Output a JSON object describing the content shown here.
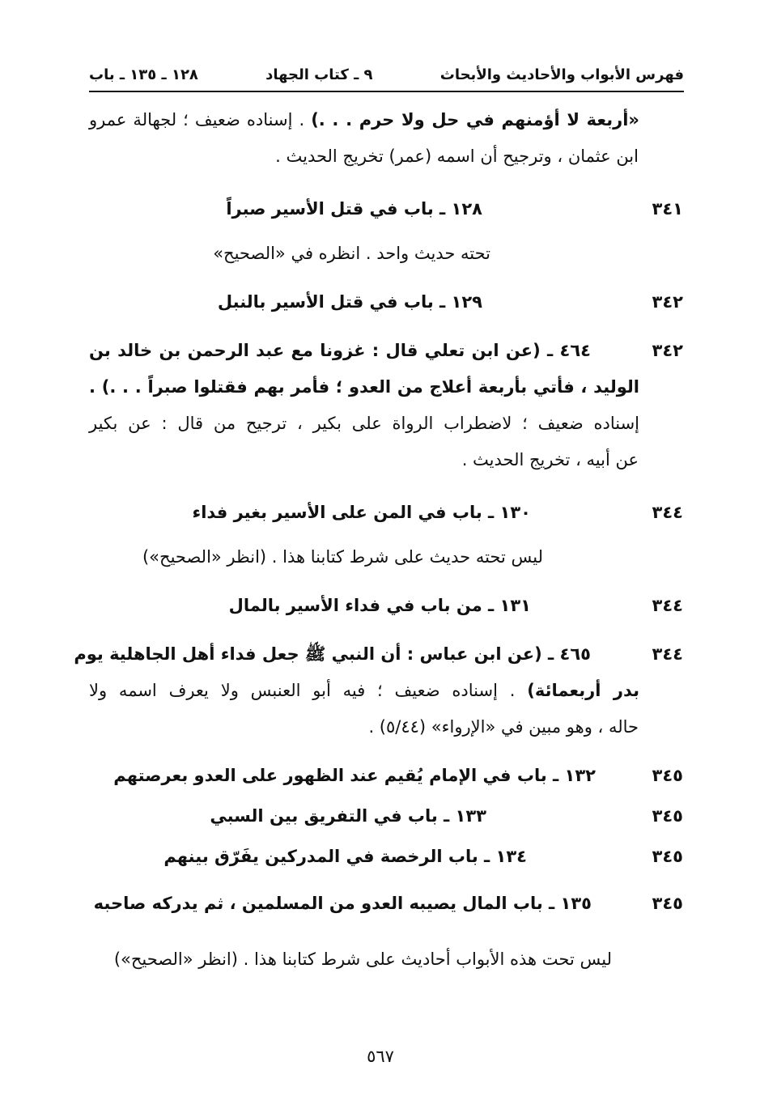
{
  "header": {
    "index_title": "فهرس الأبواب والأحاديث والأبحاث",
    "book": "٩ ـ كتاب الجهاد",
    "range": "١٢٨ ـ ١٣٥ ـ باب"
  },
  "entries": {
    "cont": {
      "l1_bold": "«أربعة لا أؤمنهم في حل ولا حرم . . .)",
      "l1_rest": " . إسناده ضعيف ؛ لجهالة عمرو",
      "l2": "ابن عثمان ، وترجيح أن اسمه (عمر) تخريج الحديث ."
    },
    "bab128": {
      "page": "٣٤١",
      "title": "١٢٨ ـ باب في قتل الأسير صبراً",
      "note": "تحته حديث واحد . انظره في «الصحيح»"
    },
    "bab129": {
      "page": "٣٤٢",
      "title": "١٢٩ ـ باب في قتل الأسير بالنبل"
    },
    "hadith464": {
      "page": "٣٤٢",
      "l1": "٤٦٤ ـ (عن ابن تعلي قال : غزونا مع عبد الرحمن بن خالد بن",
      "l2": "الوليد ، فأتي بأربعة أعلاج من العدو ؛ فأمر بهم فقتلوا صبراً . . .) .",
      "l3": "إسناده ضعيف ؛ لاضطراب الرواة على بكير ، ترجيح من قال : عن بكير",
      "l4": "عن أبيه ، تخريج الحديث ."
    },
    "bab130": {
      "page": "٣٤٤",
      "title": "١٣٠ ـ باب في المن على الأسير بغير فداء",
      "note": "ليس تحته حديث على شرط كتابنا هذا . (انظر «الصحيح»)"
    },
    "bab131": {
      "page": "٣٤٤",
      "title": "١٣١ ـ من باب في فداء الأسير بالمال"
    },
    "hadith465": {
      "page": "٣٤٤",
      "l1": "٤٦٥ ـ (عن ابن عباس : أن النبي ﷺ جعل فداء أهل الجاهلية يوم",
      "l2_bold": "بدر أربعمائة)",
      "l2_rest": " . إسناده ضعيف ؛ فيه أبو العنبس ولا يعرف اسمه ولا",
      "l3": "حاله ، وهو مبين في «الإرواء» (٥/٤٤) ."
    },
    "bab132": {
      "page": "٣٤٥",
      "title": "١٣٢ ـ باب في الإمام يُقيم عند الظهور على العدو بعرصتهم"
    },
    "bab133": {
      "page": "٣٤٥",
      "title": "١٣٣ ـ باب في التفريق بين السبي"
    },
    "bab134": {
      "page": "٣٤٥",
      "title": "١٣٤ ـ باب الرخصة في المدركين يفَرّق بينهم"
    },
    "bab135": {
      "page": "٣٤٥",
      "title": "١٣٥ ـ باب المال يصيبه العدو من المسلمين ، ثم يدركه صاحبه"
    },
    "final_note": "ليس تحت هذه الأبواب أحاديث على شرط كتابنا هذا . (انظر «الصحيح»)"
  },
  "page_number": "٥٦٧"
}
